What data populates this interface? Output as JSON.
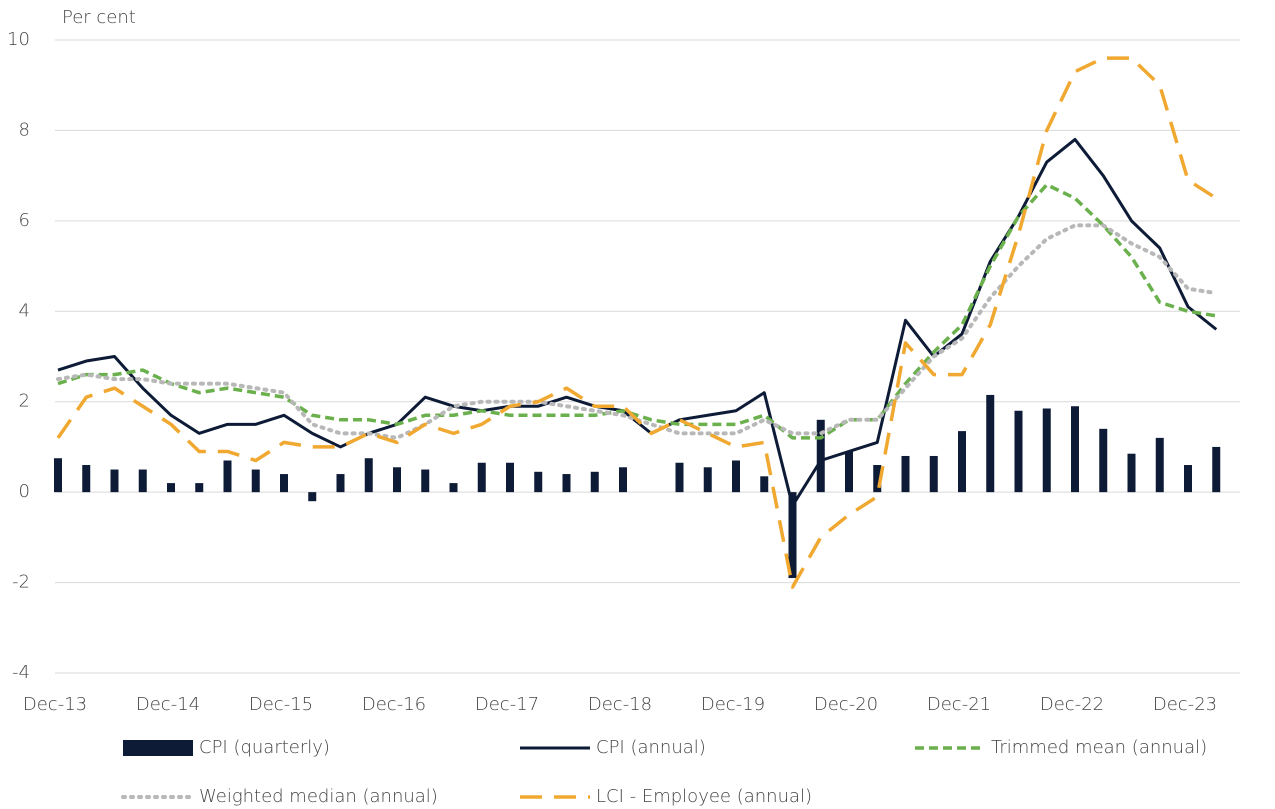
{
  "chart_data": {
    "type": "line",
    "y_label": "Per cent",
    "categories": [
      "Dec-13",
      null,
      null,
      null,
      "Dec-14",
      null,
      null,
      null,
      "Dec-15",
      null,
      null,
      null,
      "Dec-16",
      null,
      null,
      null,
      "Dec-17",
      null,
      null,
      null,
      "Dec-18",
      null,
      null,
      null,
      "Dec-19",
      null,
      null,
      null,
      "Dec-20",
      null,
      null,
      null,
      "Dec-21",
      null,
      null,
      null,
      "Dec-22",
      null,
      null,
      null,
      "Dec-23",
      null
    ],
    "ylim": [
      -4,
      10
    ],
    "yticks": [
      -4,
      -2,
      0,
      2,
      4,
      6,
      8,
      10
    ],
    "grid": true,
    "series": [
      {
        "name": "CPI (quarterly)",
        "type": "bar",
        "color": "#0d1b36",
        "values": [
          0.75,
          0.6,
          0.5,
          0.5,
          0.2,
          0.2,
          0.7,
          0.5,
          0.4,
          -0.2,
          0.4,
          0.75,
          0.55,
          0.5,
          0.2,
          0.65,
          0.65,
          0.45,
          0.4,
          0.45,
          0.55,
          0.0,
          0.65,
          0.55,
          0.7,
          0.35,
          -1.9,
          1.6,
          0.9,
          0.6,
          0.8,
          0.8,
          1.35,
          2.15,
          1.8,
          1.85,
          1.9,
          1.4,
          0.85,
          1.2,
          0.6,
          1.0
        ]
      },
      {
        "name": "CPI (annual)",
        "type": "line",
        "line_style": "solid",
        "color": "#0d1b36",
        "values": [
          2.7,
          2.9,
          3.0,
          2.3,
          1.7,
          1.3,
          1.5,
          1.5,
          1.7,
          1.3,
          1.0,
          1.3,
          1.5,
          2.1,
          1.9,
          1.8,
          1.9,
          1.9,
          2.1,
          1.9,
          1.8,
          1.3,
          1.6,
          1.7,
          1.8,
          2.2,
          -0.3,
          0.7,
          0.9,
          1.1,
          3.8,
          3.0,
          3.5,
          5.1,
          6.1,
          7.3,
          7.8,
          7.0,
          6.0,
          5.4,
          4.1,
          3.6
        ]
      },
      {
        "name": "Trimmed mean (annual)",
        "type": "line",
        "line_style": "dashed",
        "color": "#6ab04c",
        "values": [
          2.4,
          2.6,
          2.6,
          2.7,
          2.4,
          2.2,
          2.3,
          2.2,
          2.1,
          1.7,
          1.6,
          1.6,
          1.5,
          1.7,
          1.7,
          1.8,
          1.7,
          1.7,
          1.7,
          1.7,
          1.8,
          1.6,
          1.5,
          1.5,
          1.5,
          1.7,
          1.2,
          1.2,
          1.6,
          1.6,
          2.4,
          3.1,
          3.7,
          5.0,
          6.1,
          6.8,
          6.5,
          5.9,
          5.2,
          4.2,
          4.0,
          3.9
        ]
      },
      {
        "name": "Weighted median (annual)",
        "type": "line",
        "line_style": "dotted",
        "color": "#b8b8b8",
        "values": [
          2.5,
          2.6,
          2.5,
          2.5,
          2.4,
          2.4,
          2.4,
          2.3,
          2.2,
          1.5,
          1.3,
          1.3,
          1.2,
          1.5,
          1.9,
          2.0,
          2.0,
          2.0,
          1.9,
          1.8,
          1.7,
          1.5,
          1.3,
          1.3,
          1.3,
          1.6,
          1.3,
          1.3,
          1.6,
          1.6,
          2.3,
          3.0,
          3.4,
          4.3,
          5.0,
          5.6,
          5.9,
          5.9,
          5.5,
          5.2,
          4.5,
          4.4
        ]
      },
      {
        "name": "LCI - Employee (annual)",
        "type": "line",
        "line_style": "long-dash",
        "color": "#f0a830",
        "values": [
          1.2,
          2.1,
          2.3,
          1.9,
          1.5,
          0.9,
          0.9,
          0.7,
          1.1,
          1.0,
          1.0,
          1.3,
          1.1,
          1.5,
          1.3,
          1.5,
          1.9,
          2.0,
          2.3,
          1.9,
          1.9,
          1.3,
          1.6,
          1.3,
          1.0,
          1.1,
          -2.1,
          -1.0,
          -0.5,
          -0.1,
          3.3,
          2.6,
          2.6,
          3.7,
          5.7,
          8.0,
          9.3,
          9.6,
          9.6,
          9.0,
          6.9,
          6.5
        ]
      }
    ]
  }
}
